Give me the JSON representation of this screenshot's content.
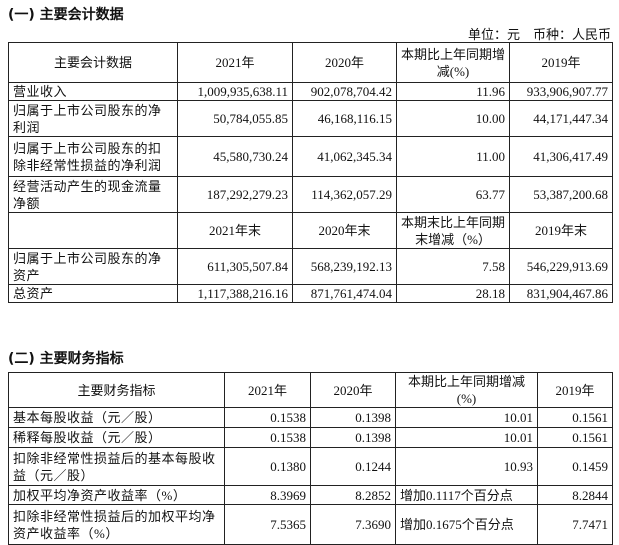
{
  "section1": {
    "title": "(一) 主要会计数据",
    "unit": "单位：元　币种：人民币",
    "header": [
      "主要会计数据",
      "2021年",
      "2020年",
      "本期比上年同期增减(%)",
      "2019年"
    ],
    "rows": [
      [
        "营业收入",
        "1,009,935,638.11",
        "902,078,704.42",
        "11.96",
        "933,906,907.77"
      ],
      [
        "归属于上市公司股东的净利润",
        "50,784,055.85",
        "46,168,116.15",
        "10.00",
        "44,171,447.34"
      ],
      [
        "归属于上市公司股东的扣除非经常性损益的净利润",
        "45,580,730.24",
        "41,062,345.34",
        "11.00",
        "41,306,417.49"
      ],
      [
        "经营活动产生的现金流量净额",
        "187,292,279.23",
        "114,362,057.29",
        "63.77",
        "53,387,200.68"
      ]
    ],
    "header2": [
      "",
      "2021年末",
      "2020年末",
      "本期末比上年同期末增减（%）",
      "2019年末"
    ],
    "rows2": [
      [
        "归属于上市公司股东的净资产",
        "611,305,507.84",
        "568,239,192.13",
        "7.58",
        "546,229,913.69"
      ],
      [
        "总资产",
        "1,117,388,216.16",
        "871,761,474.04",
        "28.18",
        "831,904,467.86"
      ]
    ]
  },
  "section2": {
    "title": "(二) 主要财务指标",
    "header": [
      "主要财务指标",
      "2021年",
      "2020年",
      "本期比上年同期增减(%)",
      "2019年"
    ],
    "rows": [
      [
        "基本每股收益（元／股）",
        "0.1538",
        "0.1398",
        "10.01",
        "0.1561"
      ],
      [
        "稀释每股收益（元／股）",
        "0.1538",
        "0.1398",
        "10.01",
        "0.1561"
      ],
      [
        "扣除非经常性损益后的基本每股收益（元／股）",
        "0.1380",
        "0.1244",
        "10.93",
        "0.1459"
      ],
      [
        "加权平均净资产收益率（%）",
        "8.3969",
        "8.2852",
        "增加0.1117个百分点",
        "8.2844"
      ],
      [
        "扣除非经常性损益后的加权平均净资产收益率（%）",
        "7.5365",
        "7.3690",
        "增加0.1675个百分点",
        "7.7471"
      ]
    ]
  }
}
